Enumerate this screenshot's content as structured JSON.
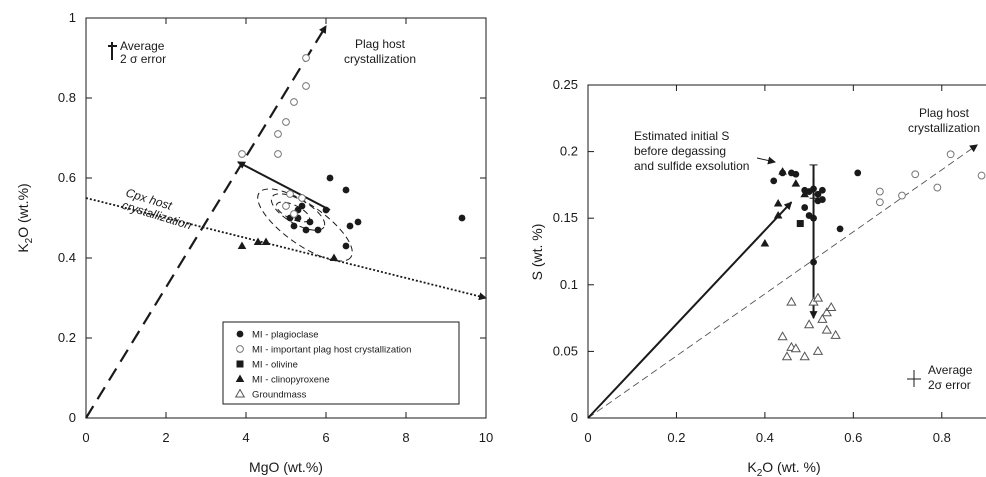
{
  "chart_data": [
    {
      "type": "scatter",
      "xlabel": "MgO  (wt.%)",
      "ylabel": {
        "main": "K",
        "sub": "2",
        "rest": "O  (wt.%)"
      },
      "xlim": [
        0,
        10
      ],
      "ylim": [
        0,
        1
      ],
      "xticks": [
        "0",
        "2",
        "4",
        "6",
        "8",
        "10"
      ],
      "yticks": [
        "0",
        "0.2",
        "0.4",
        "0.6",
        "0.8",
        "1"
      ],
      "grid": false,
      "legend_position": "bottom-right",
      "series": [
        {
          "name": "MI - plagioclase",
          "marker": "filled-circle",
          "color": "#1a1a1a",
          "points": [
            [
              5.1,
              0.5
            ],
            [
              5.2,
              0.48
            ],
            [
              5.3,
              0.5
            ],
            [
              5.4,
              0.53
            ],
            [
              5.5,
              0.47
            ],
            [
              5.6,
              0.49
            ],
            [
              5.3,
              0.52
            ],
            [
              5.8,
              0.47
            ],
            [
              6.0,
              0.52
            ],
            [
              6.1,
              0.6
            ],
            [
              6.5,
              0.57
            ],
            [
              6.5,
              0.43
            ],
            [
              6.6,
              0.48
            ],
            [
              6.8,
              0.49
            ],
            [
              9.4,
              0.5
            ]
          ]
        },
        {
          "name": "MI - important plag host crystallization",
          "marker": "open-circle",
          "color": "#777777",
          "points": [
            [
              3.9,
              0.66
            ],
            [
              4.8,
              0.66
            ],
            [
              4.8,
              0.71
            ],
            [
              5.0,
              0.74
            ],
            [
              5.2,
              0.79
            ],
            [
              5.5,
              0.83
            ],
            [
              5.5,
              0.9
            ],
            [
              5.0,
              0.53
            ],
            [
              5.2,
              0.51
            ],
            [
              5.1,
              0.56
            ],
            [
              5.4,
              0.55
            ]
          ]
        },
        {
          "name": "MI - olivine",
          "marker": "filled-square",
          "color": "#1a1a1a",
          "points": []
        },
        {
          "name": "MI - clinopyroxene",
          "marker": "filled-triangle",
          "color": "#1a1a1a",
          "points": [
            [
              3.9,
              0.43
            ],
            [
              4.3,
              0.44
            ],
            [
              4.5,
              0.44
            ],
            [
              6.2,
              0.4
            ]
          ]
        },
        {
          "name": "Groundmass",
          "marker": "open-triangle",
          "color": "#555555",
          "points": []
        }
      ],
      "annotations": [
        {
          "text": "Average",
          "line2": "2 σ error"
        },
        {
          "text": "Plag host",
          "line2": "crystallization"
        },
        {
          "text": "Cpx host",
          "line2": "crystallization"
        }
      ],
      "trend_lines": [
        {
          "name": "plag-host-trend",
          "style": "long-dash",
          "from": [
            0.0,
            0.0
          ],
          "to": [
            6.0,
            0.98
          ]
        },
        {
          "name": "cpx-host-trend",
          "style": "dotted",
          "from": [
            0.0,
            0.55
          ],
          "to": [
            10.0,
            0.3
          ]
        },
        {
          "name": "main-arrow",
          "style": "solid",
          "from": [
            6.1,
            0.52
          ],
          "to": [
            3.8,
            0.64
          ]
        }
      ]
    },
    {
      "type": "scatter",
      "xlabel": {
        "main": "K",
        "sub": "2",
        "rest": "O (wt. %)"
      },
      "ylabel": "S (wt. %)",
      "xlim": [
        0,
        0.9
      ],
      "ylim": [
        0,
        0.25
      ],
      "xticks": [
        "0",
        "0.2",
        "0.4",
        "0.6",
        "0.8"
      ],
      "yticks": [
        "0",
        "0.05",
        "0.1",
        "0.15",
        "0.2",
        "0.25"
      ],
      "grid": false,
      "series": [
        {
          "name": "MI - plagioclase",
          "marker": "filled-circle",
          "color": "#1a1a1a",
          "points": [
            [
              0.42,
              0.178
            ],
            [
              0.44,
              0.184
            ],
            [
              0.46,
              0.184
            ],
            [
              0.47,
              0.183
            ],
            [
              0.49,
              0.171
            ],
            [
              0.5,
              0.17
            ],
            [
              0.51,
              0.172
            ],
            [
              0.52,
              0.168
            ],
            [
              0.52,
              0.163
            ],
            [
              0.53,
              0.171
            ],
            [
              0.5,
              0.152
            ],
            [
              0.51,
              0.15
            ],
            [
              0.49,
              0.158
            ],
            [
              0.51,
              0.117
            ],
            [
              0.57,
              0.142
            ],
            [
              0.61,
              0.184
            ],
            [
              0.53,
              0.164
            ]
          ]
        },
        {
          "name": "MI - important plag host crystallization",
          "marker": "open-circle",
          "color": "#777777",
          "points": [
            [
              0.66,
              0.17
            ],
            [
              0.66,
              0.162
            ],
            [
              0.71,
              0.167
            ],
            [
              0.74,
              0.183
            ],
            [
              0.79,
              0.173
            ],
            [
              0.82,
              0.198
            ],
            [
              0.89,
              0.182
            ]
          ]
        },
        {
          "name": "MI - olivine",
          "marker": "filled-square",
          "color": "#1a1a1a",
          "points": [
            [
              0.48,
              0.146
            ]
          ]
        },
        {
          "name": "MI - clinopyroxene",
          "marker": "filled-triangle",
          "color": "#1a1a1a",
          "points": [
            [
              0.4,
              0.131
            ],
            [
              0.43,
              0.161
            ],
            [
              0.44,
              0.185
            ],
            [
              0.43,
              0.152
            ],
            [
              0.47,
              0.176
            ],
            [
              0.49,
              0.168
            ]
          ]
        },
        {
          "name": "Groundmass",
          "marker": "open-triangle",
          "color": "#555555",
          "points": [
            [
              0.46,
              0.087
            ],
            [
              0.51,
              0.087
            ],
            [
              0.52,
              0.09
            ],
            [
              0.54,
              0.079
            ],
            [
              0.55,
              0.083
            ],
            [
              0.53,
              0.074
            ],
            [
              0.5,
              0.07
            ],
            [
              0.44,
              0.061
            ],
            [
              0.46,
              0.053
            ],
            [
              0.47,
              0.052
            ],
            [
              0.45,
              0.046
            ],
            [
              0.49,
              0.046
            ],
            [
              0.52,
              0.05
            ],
            [
              0.56,
              0.062
            ],
            [
              0.54,
              0.066
            ]
          ]
        }
      ],
      "annotations": [
        {
          "text": "Estimated initial S",
          "line2": "before degassing",
          "line3": "and sulfide exsolution"
        },
        {
          "text": "Plag host",
          "line2": "crystallization"
        },
        {
          "text": "Average",
          "line2": "2σ error"
        }
      ],
      "trend_lines": [
        {
          "name": "plag-host-trend",
          "style": "dashed",
          "from": [
            0.0,
            0.0
          ],
          "to": [
            0.88,
            0.205
          ]
        },
        {
          "name": "origin-arrow",
          "style": "solid",
          "from": [
            0.0,
            0.0
          ],
          "to": [
            0.46,
            0.162
          ]
        },
        {
          "name": "degassing-arrow",
          "style": "solid",
          "from": [
            0.51,
            0.18
          ],
          "to": [
            0.51,
            0.075
          ]
        },
        {
          "name": "initial-s-errorbar",
          "style": "solid",
          "from": [
            0.51,
            0.19
          ],
          "to": [
            0.51,
            0.165
          ]
        }
      ]
    }
  ]
}
